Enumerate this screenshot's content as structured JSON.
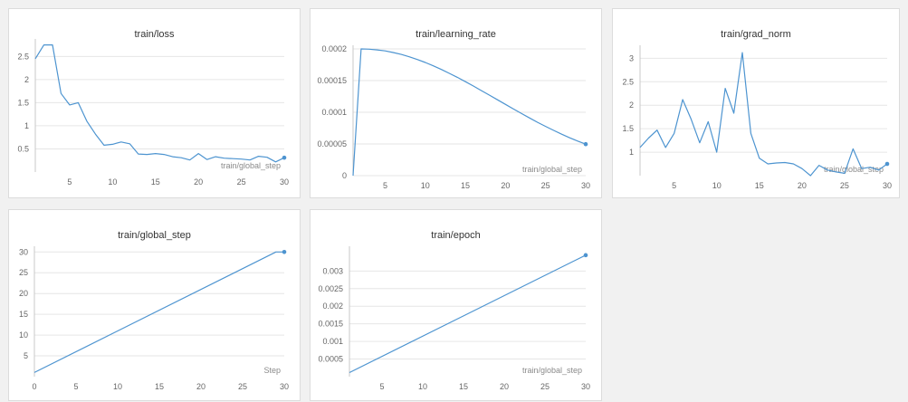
{
  "colors": {
    "line": "#4d94d0",
    "grid": "#e6e6e6",
    "axis": "#c8c8c8",
    "tick": "#666666",
    "xlabel": "#8a8a8a"
  },
  "chart_data": [
    {
      "type": "line",
      "title": "train/loss",
      "xlabel": "train/global_step",
      "xlim": [
        1,
        30
      ],
      "ylim": [
        0,
        2.8
      ],
      "xticks": [
        5,
        10,
        15,
        20,
        25,
        30
      ],
      "yticks": [
        0.5,
        1,
        1.5,
        2,
        2.5
      ],
      "yticklabels": [
        "0.5",
        "1",
        "1.5",
        "2",
        "2.5"
      ],
      "end_marker": true,
      "series": [
        {
          "x": [
            1,
            2,
            3,
            4,
            5,
            6,
            7,
            8,
            9,
            10,
            11,
            12,
            13,
            14,
            15,
            16,
            17,
            18,
            19,
            20,
            21,
            22,
            23,
            24,
            25,
            26,
            27,
            28,
            29,
            30
          ],
          "y": [
            2.45,
            2.75,
            2.75,
            1.7,
            1.45,
            1.5,
            1.1,
            0.82,
            0.58,
            0.6,
            0.65,
            0.61,
            0.39,
            0.38,
            0.4,
            0.38,
            0.33,
            0.31,
            0.26,
            0.4,
            0.27,
            0.33,
            0.3,
            0.29,
            0.28,
            0.26,
            0.34,
            0.32,
            0.22,
            0.31
          ]
        }
      ]
    },
    {
      "type": "line",
      "title": "train/learning_rate",
      "xlabel": "train/global_step",
      "xlim": [
        1,
        30
      ],
      "ylim": [
        0,
        0.0002
      ],
      "xticks": [
        5,
        10,
        15,
        20,
        25,
        30
      ],
      "yticks": [
        0,
        5e-05,
        0.0001,
        0.00015,
        0.0002
      ],
      "yticklabels": [
        "0",
        "0.00005",
        "0.0001",
        "0.00015",
        "0.0002"
      ],
      "end_marker": true,
      "series": [
        {
          "x": [
            1,
            2,
            3,
            4,
            5,
            6,
            7,
            8,
            9,
            10,
            11,
            12,
            13,
            14,
            15,
            16,
            17,
            18,
            19,
            20,
            21,
            22,
            23,
            24,
            25,
            26,
            27,
            28,
            29,
            30
          ],
          "y": [
            0,
            0.0002,
            0.0001996,
            0.0001985,
            0.0001968,
            0.0001943,
            0.0001913,
            0.0001876,
            0.0001833,
            0.0001786,
            0.0001733,
            0.0001676,
            0.0001615,
            0.0001551,
            0.0001483,
            0.0001414,
            0.0001342,
            0.000127,
            0.0001197,
            0.0001124,
            0.0001052,
            9.8e-05,
            9.1e-05,
            8.42e-05,
            7.77e-05,
            7.14e-05,
            6.54e-05,
            5.97e-05,
            5.45e-05,
            4.97e-05
          ]
        }
      ]
    },
    {
      "type": "line",
      "title": "train/grad_norm",
      "xlabel": "train/global_step",
      "xlim": [
        1,
        30
      ],
      "ylim": [
        0.5,
        3.2
      ],
      "xticks": [
        5,
        10,
        15,
        20,
        25,
        30
      ],
      "yticks": [
        1,
        1.5,
        2,
        2.5,
        3
      ],
      "yticklabels": [
        "1",
        "1.5",
        "2",
        "2.5",
        "3"
      ],
      "end_marker": true,
      "series": [
        {
          "x": [
            1,
            2,
            3,
            4,
            5,
            6,
            7,
            8,
            9,
            10,
            11,
            12,
            13,
            14,
            15,
            16,
            17,
            18,
            19,
            20,
            21,
            22,
            23,
            24,
            25,
            26,
            27,
            28,
            29,
            30
          ],
          "y": [
            1.1,
            1.3,
            1.47,
            1.1,
            1.4,
            2.12,
            1.7,
            1.2,
            1.65,
            1.0,
            2.36,
            1.83,
            3.12,
            1.4,
            0.87,
            0.75,
            0.77,
            0.78,
            0.75,
            0.65,
            0.5,
            0.72,
            0.62,
            0.58,
            0.55,
            1.07,
            0.65,
            0.68,
            0.62,
            0.75
          ]
        }
      ]
    },
    {
      "type": "line",
      "title": "train/global_step",
      "xlabel": "Step",
      "xlim": [
        0,
        30
      ],
      "ylim": [
        0,
        30.5
      ],
      "xticks": [
        0,
        5,
        10,
        15,
        20,
        25,
        30
      ],
      "yticks": [
        5,
        10,
        15,
        20,
        25,
        30
      ],
      "yticklabels": [
        "5",
        "10",
        "15",
        "20",
        "25",
        "30"
      ],
      "end_marker": true,
      "series": [
        {
          "x": [
            0,
            29,
            30
          ],
          "y": [
            1,
            30,
            30
          ]
        }
      ]
    },
    {
      "type": "line",
      "title": "train/epoch",
      "xlabel": "train/global_step",
      "xlim": [
        1,
        30
      ],
      "ylim": [
        0,
        0.0036
      ],
      "xticks": [
        5,
        10,
        15,
        20,
        25,
        30
      ],
      "yticks": [
        0.0005,
        0.001,
        0.0015,
        0.002,
        0.0025,
        0.003
      ],
      "yticklabels": [
        "0.0005",
        "0.001",
        "0.0015",
        "0.002",
        "0.0025",
        "0.003"
      ],
      "end_marker": true,
      "series": [
        {
          "x": [
            1,
            30
          ],
          "y": [
            0.000115,
            0.00345
          ]
        }
      ]
    }
  ]
}
